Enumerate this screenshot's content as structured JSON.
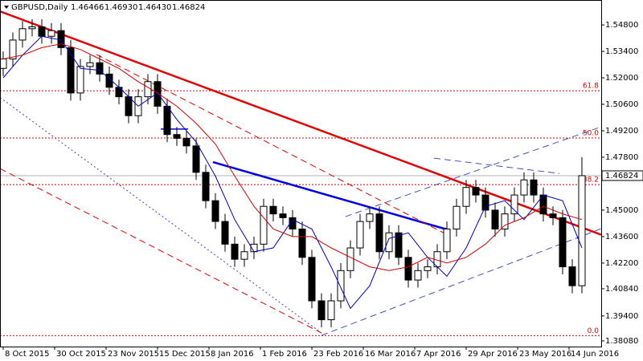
{
  "chart_data": {
    "type": "candlestick",
    "title": "GBPUSD,Daily",
    "header_values": [
      "1.46466",
      "1.46930",
      "1.46430",
      "1.46824"
    ],
    "xlim": [
      -1,
      186
    ],
    "ylim": [
      1.3778,
      1.5612
    ],
    "xticks": [
      {
        "value": 0,
        "label": "8 Oct 2015"
      },
      {
        "value": 16,
        "label": "30 Oct 2015"
      },
      {
        "value": 32,
        "label": "23 Nov 2015"
      },
      {
        "value": 48,
        "label": "15 Dec 2015"
      },
      {
        "value": 64,
        "label": "8 Jan 2016"
      },
      {
        "value": 80,
        "label": "1 Feb 2016"
      },
      {
        "value": 96,
        "label": "23 Feb 2016"
      },
      {
        "value": 112,
        "label": "16 Mar 2016"
      },
      {
        "value": 128,
        "label": "7 Apr 2016"
      },
      {
        "value": 144,
        "label": "29 Apr 2016"
      },
      {
        "value": 160,
        "label": "23 May 2016"
      },
      {
        "value": 176,
        "label": "14 Jun 2016"
      }
    ],
    "yticks": [
      {
        "value": 1.548,
        "label": "1.54800"
      },
      {
        "value": 1.534,
        "label": "1.53400"
      },
      {
        "value": 1.52,
        "label": "1.52000"
      },
      {
        "value": 1.506,
        "label": "1.50600"
      },
      {
        "value": 1.492,
        "label": "1.49200"
      },
      {
        "value": 1.478,
        "label": "1.47800"
      },
      {
        "value": 1.45,
        "label": "1.45000"
      },
      {
        "value": 1.436,
        "label": "1.43600"
      },
      {
        "value": 1.422,
        "label": "1.42200"
      },
      {
        "value": 1.4084,
        "label": "1.40840"
      },
      {
        "value": 1.394,
        "label": "1.39400"
      },
      {
        "value": 1.3808,
        "label": "1.38080"
      }
    ],
    "up_color": "#ffffff",
    "down_color": "#000000",
    "x": [
      0,
      3,
      6,
      9,
      12,
      15,
      18,
      21,
      24,
      27,
      30,
      33,
      36,
      39,
      42,
      45,
      48,
      51,
      54,
      57,
      60,
      63,
      66,
      69,
      72,
      75,
      78,
      81,
      84,
      87,
      90,
      93,
      96,
      99,
      102,
      105,
      108,
      111,
      114,
      117,
      120,
      123,
      126,
      129,
      132,
      135,
      138,
      141,
      144,
      147,
      150,
      153,
      156,
      159,
      162,
      165,
      168,
      171,
      174,
      177,
      180
    ],
    "open": [
      1.525,
      1.53,
      1.54,
      1.546,
      1.547,
      1.542,
      1.545,
      1.536,
      1.512,
      1.526,
      1.528,
      1.522,
      1.515,
      1.51,
      1.5,
      1.51,
      1.518,
      1.505,
      1.49,
      1.488,
      1.484,
      1.47,
      1.455,
      1.444,
      1.432,
      1.424,
      1.428,
      1.432,
      1.452,
      1.448,
      1.446,
      1.44,
      1.425,
      1.402,
      1.392,
      1.402,
      1.418,
      1.43,
      1.444,
      1.448,
      1.428,
      1.438,
      1.425,
      1.413,
      1.418,
      1.42,
      1.428,
      1.44,
      1.452,
      1.462,
      1.458,
      1.45,
      1.44,
      1.448,
      1.458,
      1.466,
      1.458,
      1.448,
      1.446,
      1.42,
      1.41
    ],
    "high": [
      1.534,
      1.544,
      1.55,
      1.551,
      1.551,
      1.549,
      1.549,
      1.54,
      1.53,
      1.532,
      1.532,
      1.526,
      1.519,
      1.514,
      1.514,
      1.522,
      1.522,
      1.509,
      1.494,
      1.492,
      1.488,
      1.474,
      1.459,
      1.448,
      1.436,
      1.432,
      1.436,
      1.456,
      1.456,
      1.452,
      1.45,
      1.444,
      1.429,
      1.406,
      1.406,
      1.422,
      1.434,
      1.448,
      1.452,
      1.452,
      1.442,
      1.442,
      1.429,
      1.422,
      1.424,
      1.432,
      1.444,
      1.456,
      1.466,
      1.466,
      1.462,
      1.454,
      1.452,
      1.462,
      1.47,
      1.47,
      1.462,
      1.452,
      1.45,
      1.424,
      1.478
    ],
    "low": [
      1.521,
      1.526,
      1.536,
      1.542,
      1.538,
      1.538,
      1.532,
      1.508,
      1.508,
      1.522,
      1.518,
      1.511,
      1.506,
      1.496,
      1.496,
      1.506,
      1.501,
      1.486,
      1.484,
      1.48,
      1.466,
      1.451,
      1.44,
      1.428,
      1.42,
      1.42,
      1.424,
      1.428,
      1.444,
      1.442,
      1.436,
      1.421,
      1.398,
      1.388,
      1.388,
      1.398,
      1.414,
      1.426,
      1.44,
      1.424,
      1.424,
      1.421,
      1.409,
      1.409,
      1.414,
      1.416,
      1.424,
      1.436,
      1.448,
      1.454,
      1.446,
      1.436,
      1.436,
      1.444,
      1.454,
      1.454,
      1.444,
      1.442,
      1.416,
      1.406,
      1.406
    ],
    "close": [
      1.53,
      1.54,
      1.546,
      1.547,
      1.542,
      1.545,
      1.536,
      1.512,
      1.526,
      1.528,
      1.522,
      1.515,
      1.51,
      1.5,
      1.51,
      1.518,
      1.505,
      1.49,
      1.488,
      1.484,
      1.47,
      1.455,
      1.444,
      1.432,
      1.424,
      1.428,
      1.432,
      1.452,
      1.448,
      1.446,
      1.44,
      1.425,
      1.402,
      1.392,
      1.402,
      1.418,
      1.43,
      1.444,
      1.448,
      1.428,
      1.438,
      1.425,
      1.413,
      1.418,
      1.42,
      1.428,
      1.44,
      1.452,
      1.462,
      1.458,
      1.45,
      1.44,
      1.448,
      1.458,
      1.466,
      1.458,
      1.448,
      1.446,
      1.42,
      1.41,
      1.46824
    ],
    "last_price": {
      "value": 1.46824,
      "label": "1.46824"
    },
    "series": [
      {
        "color": "#0000c0",
        "x": [
          0,
          6,
          12,
          18,
          24,
          30,
          36,
          42,
          48,
          54,
          60,
          66,
          72,
          78,
          84,
          90,
          96,
          102,
          108,
          114,
          120,
          126,
          132,
          138,
          144,
          150,
          156,
          162,
          168,
          174,
          180
        ],
        "values": [
          1.52,
          1.532,
          1.542,
          1.54,
          1.525,
          1.524,
          1.515,
          1.505,
          1.512,
          1.498,
          1.486,
          1.468,
          1.445,
          1.428,
          1.43,
          1.445,
          1.44,
          1.42,
          1.398,
          1.41,
          1.435,
          1.438,
          1.425,
          1.415,
          1.43,
          1.452,
          1.455,
          1.445,
          1.458,
          1.455,
          1.43
        ]
      },
      {
        "color": "#d00000",
        "x": [
          0,
          6,
          12,
          18,
          24,
          30,
          36,
          42,
          48,
          54,
          60,
          66,
          72,
          78,
          84,
          90,
          96,
          102,
          108,
          114,
          120,
          126,
          132,
          138,
          144,
          150,
          156,
          162,
          168,
          174,
          180
        ],
        "values": [
          1.53,
          1.532,
          1.536,
          1.538,
          1.535,
          1.53,
          1.525,
          1.518,
          1.512,
          1.505,
          1.496,
          1.485,
          1.468,
          1.452,
          1.44,
          1.436,
          1.436,
          1.43,
          1.425,
          1.42,
          1.418,
          1.42,
          1.425,
          1.422,
          1.425,
          1.432,
          1.442,
          1.446,
          1.452,
          1.448,
          1.445
        ]
      }
    ],
    "lines": [
      {
        "x": [
          -1,
          186
        ],
        "y": [
          1.5552,
          1.437
        ],
        "color": "#e00000",
        "width": 2.5,
        "dash": "none"
      },
      {
        "x": [
          65.25,
          139
        ],
        "y": [
          1.4754,
          1.4393
        ],
        "color": "#0000e0",
        "width": 2.5,
        "dash": "none"
      },
      {
        "x": [
          -1,
          99
        ],
        "y": [
          1.472,
          1.385
        ],
        "color": "#e00000",
        "width": 1,
        "dash": "8 5"
      },
      {
        "x": [
          29,
          139
        ],
        "y": [
          1.5324,
          1.4362
        ],
        "color": "#e00000",
        "width": 1,
        "dash": "8 5"
      },
      {
        "x": [
          -1,
          99
        ],
        "y": [
          1.5096,
          1.385
        ],
        "color": "#4040c0",
        "width": 1,
        "dash": "2 3"
      },
      {
        "x": [
          99,
          186
        ],
        "y": [
          1.3837,
          1.4402
        ],
        "color": "#4050c0",
        "width": 1,
        "dash": "8 5"
      },
      {
        "x": [
          106.5,
          186
        ],
        "y": [
          1.4466,
          1.4941
        ],
        "color": "#4050c0",
        "width": 1,
        "dash": "8 5"
      },
      {
        "x": [
          134,
          173
        ],
        "y": [
          1.4775,
          1.4694
        ],
        "color": "#4050c0",
        "width": 1,
        "dash": "8 5"
      },
      {
        "x": [
          49,
          57.5
        ],
        "y": [
          1.4929,
          1.4929
        ],
        "color": "#0000e0",
        "width": 1.5,
        "dash": "none"
      }
    ],
    "fib_levels": [
      {
        "value": 1.5132,
        "label": "61.8"
      },
      {
        "value": 1.4882,
        "label": "50.0"
      },
      {
        "value": 1.4635,
        "label": "38.2"
      },
      {
        "value": 1.3836,
        "label": "0.0"
      }
    ],
    "fib_color": "#e00000"
  }
}
